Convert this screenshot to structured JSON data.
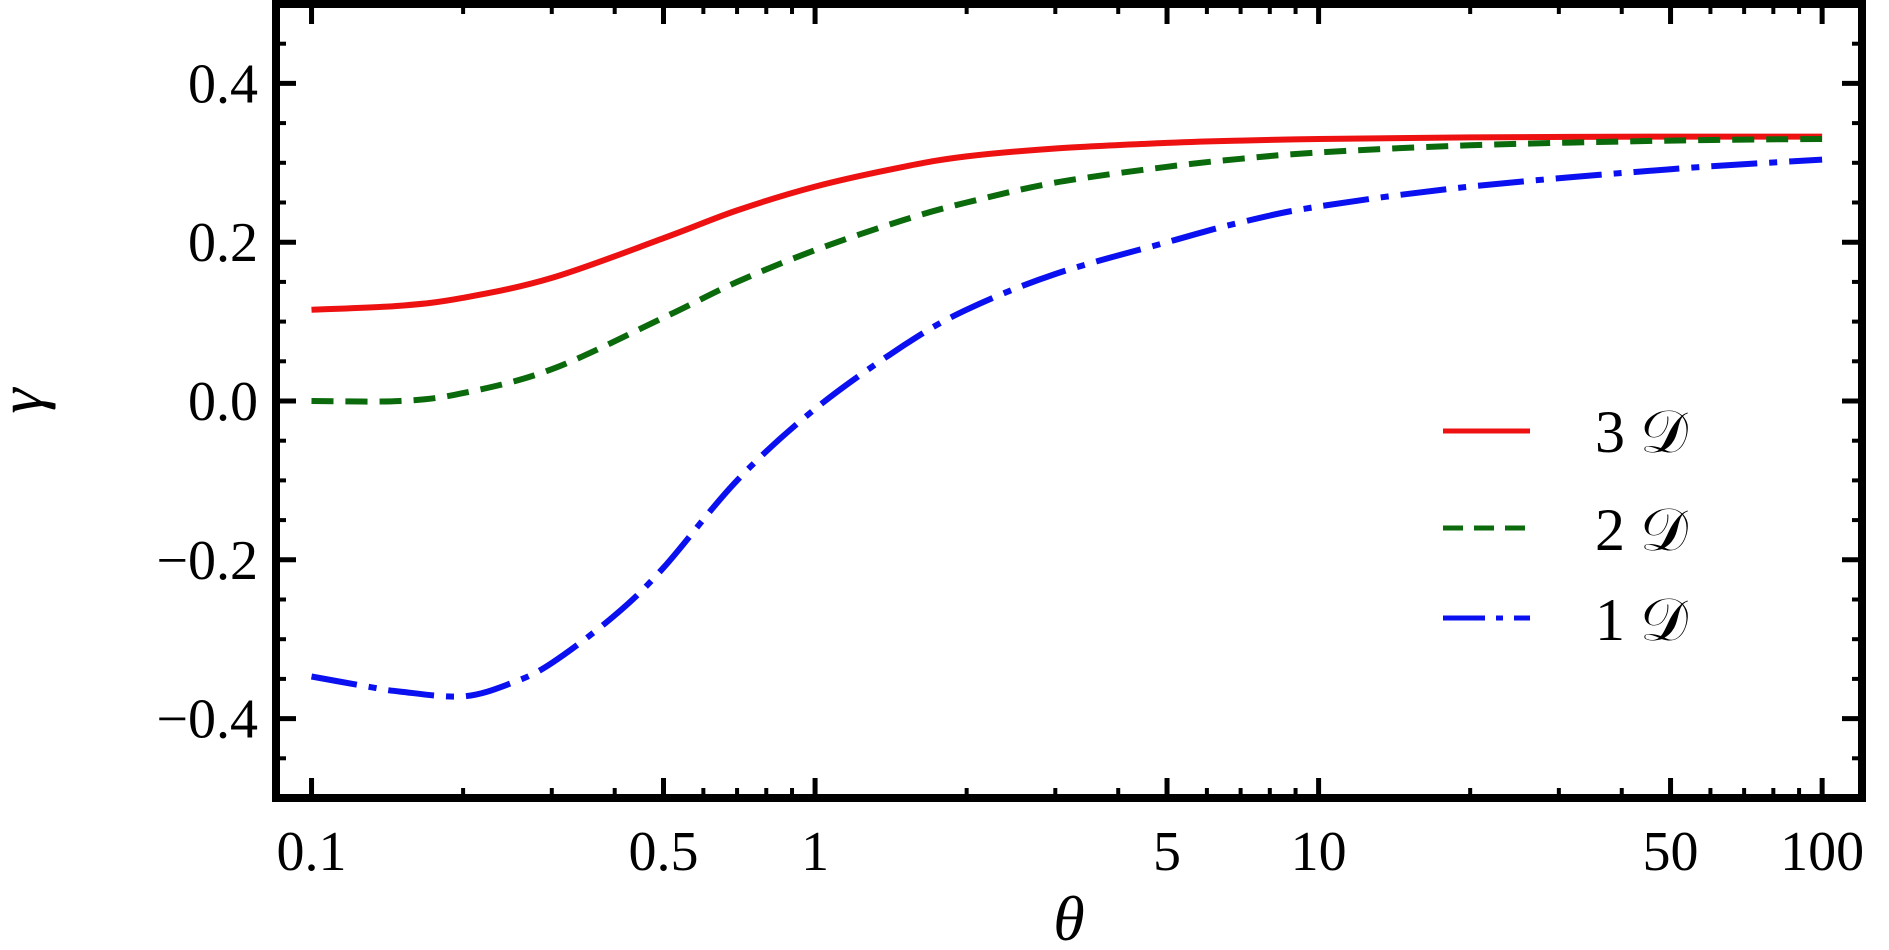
{
  "chart_data": {
    "type": "line",
    "title": "",
    "xlabel": "θ",
    "ylabel": "γ",
    "xscale": "log",
    "xlim": [
      0.085,
      120
    ],
    "ylim": [
      -0.5,
      0.5
    ],
    "grid": false,
    "legend_position": "right-center",
    "xticks": [
      {
        "value": 0.1,
        "label": "0.1"
      },
      {
        "value": 0.5,
        "label": "0.5"
      },
      {
        "value": 1,
        "label": "1"
      },
      {
        "value": 5,
        "label": "5"
      },
      {
        "value": 10,
        "label": "10"
      },
      {
        "value": 50,
        "label": "50"
      },
      {
        "value": 100,
        "label": "100"
      }
    ],
    "yticks": [
      {
        "value": 0.4,
        "label": "0.4"
      },
      {
        "value": 0.2,
        "label": "0.2"
      },
      {
        "value": 0.0,
        "label": "0.0"
      },
      {
        "value": -0.2,
        "label": "−0.2"
      },
      {
        "value": -0.4,
        "label": "−0.4"
      }
    ],
    "series": [
      {
        "name": "3 𝒟",
        "color": "#ee1111",
        "dash": "solid",
        "x": [
          0.1,
          0.15,
          0.2,
          0.3,
          0.5,
          0.7,
          1,
          1.5,
          2,
          3,
          5,
          7,
          10,
          20,
          50,
          100
        ],
        "y": [
          0.115,
          0.12,
          0.13,
          0.155,
          0.205,
          0.24,
          0.27,
          0.295,
          0.308,
          0.318,
          0.325,
          0.328,
          0.33,
          0.332,
          0.333,
          0.333
        ]
      },
      {
        "name": "2 𝒟",
        "color": "#0b6a0b",
        "dash": "dashed",
        "x": [
          0.1,
          0.15,
          0.2,
          0.3,
          0.5,
          0.7,
          1,
          1.5,
          2,
          3,
          5,
          7,
          10,
          20,
          50,
          100
        ],
        "y": [
          0.0,
          0.0,
          0.01,
          0.04,
          0.105,
          0.15,
          0.19,
          0.228,
          0.25,
          0.275,
          0.295,
          0.305,
          0.313,
          0.322,
          0.328,
          0.33
        ]
      },
      {
        "name": "1 𝒟",
        "color": "#0a10f0",
        "dash": "dash-dot",
        "x": [
          0.1,
          0.13,
          0.15,
          0.2,
          0.25,
          0.3,
          0.4,
          0.5,
          0.7,
          1,
          1.5,
          2,
          3,
          5,
          7,
          10,
          20,
          50,
          100
        ],
        "y": [
          -0.347,
          -0.36,
          -0.366,
          -0.372,
          -0.355,
          -0.33,
          -0.27,
          -0.21,
          -0.1,
          -0.01,
          0.07,
          0.115,
          0.16,
          0.2,
          0.225,
          0.245,
          0.27,
          0.292,
          0.304
        ]
      }
    ]
  }
}
